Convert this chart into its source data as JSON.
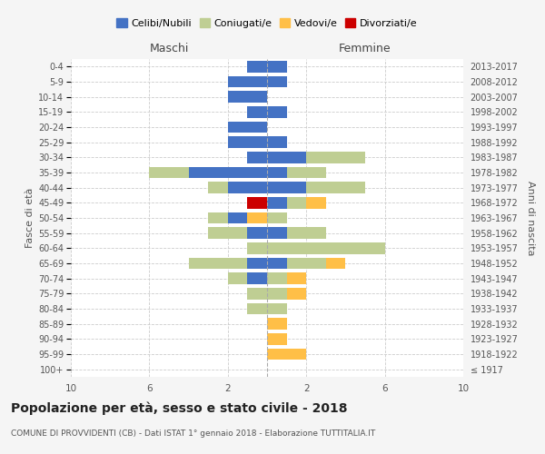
{
  "age_groups": [
    "100+",
    "95-99",
    "90-94",
    "85-89",
    "80-84",
    "75-79",
    "70-74",
    "65-69",
    "60-64",
    "55-59",
    "50-54",
    "45-49",
    "40-44",
    "35-39",
    "30-34",
    "25-29",
    "20-24",
    "15-19",
    "10-14",
    "5-9",
    "0-4"
  ],
  "birth_years": [
    "≤ 1917",
    "1918-1922",
    "1923-1927",
    "1928-1932",
    "1933-1937",
    "1938-1942",
    "1943-1947",
    "1948-1952",
    "1953-1957",
    "1958-1962",
    "1963-1967",
    "1968-1972",
    "1973-1977",
    "1978-1982",
    "1983-1987",
    "1988-1992",
    "1993-1997",
    "1998-2002",
    "2003-2007",
    "2008-2012",
    "2013-2017"
  ],
  "males": {
    "celibi": [
      0,
      0,
      0,
      0,
      0,
      0,
      1,
      1,
      0,
      1,
      1,
      0,
      2,
      4,
      1,
      2,
      2,
      1,
      2,
      2,
      1
    ],
    "coniugati": [
      0,
      0,
      0,
      0,
      1,
      1,
      1,
      3,
      1,
      2,
      1,
      0,
      1,
      2,
      0,
      0,
      0,
      0,
      0,
      0,
      0
    ],
    "vedovi": [
      0,
      0,
      0,
      0,
      0,
      0,
      0,
      0,
      0,
      0,
      1,
      0,
      0,
      0,
      0,
      0,
      0,
      0,
      0,
      0,
      0
    ],
    "divorziati": [
      0,
      0,
      0,
      0,
      0,
      0,
      0,
      0,
      0,
      0,
      0,
      1,
      0,
      0,
      0,
      0,
      0,
      0,
      0,
      0,
      0
    ]
  },
  "females": {
    "nubili": [
      0,
      0,
      0,
      0,
      0,
      0,
      0,
      1,
      0,
      1,
      0,
      1,
      2,
      1,
      2,
      1,
      0,
      1,
      0,
      1,
      1
    ],
    "coniugate": [
      0,
      0,
      0,
      0,
      1,
      1,
      1,
      2,
      6,
      2,
      1,
      1,
      3,
      2,
      3,
      0,
      0,
      0,
      0,
      0,
      0
    ],
    "vedove": [
      0,
      2,
      1,
      1,
      0,
      1,
      1,
      1,
      0,
      0,
      0,
      1,
      0,
      0,
      0,
      0,
      0,
      0,
      0,
      0,
      0
    ],
    "divorziate": [
      0,
      0,
      0,
      0,
      0,
      0,
      0,
      0,
      0,
      0,
      0,
      0,
      0,
      0,
      0,
      0,
      0,
      0,
      0,
      0,
      0
    ]
  },
  "colors": {
    "celibi": "#4472C4",
    "coniugati": "#BFCE93",
    "vedovi": "#FFBF47",
    "divorziati": "#CC0000"
  },
  "xlim": 10,
  "title": "Popolazione per età, sesso e stato civile - 2018",
  "subtitle": "COMUNE DI PROVVIDENTI (CB) - Dati ISTAT 1° gennaio 2018 - Elaborazione TUTTITALIA.IT",
  "ylabel": "Fasce di età",
  "ylabel_right": "Anni di nascita",
  "legend_labels": [
    "Celibi/Nubili",
    "Coniugati/e",
    "Vedovi/e",
    "Divorziati/e"
  ],
  "header_maschi": "Maschi",
  "header_femmine": "Femmine",
  "bg_color": "#f5f5f5",
  "plot_bg": "#ffffff"
}
